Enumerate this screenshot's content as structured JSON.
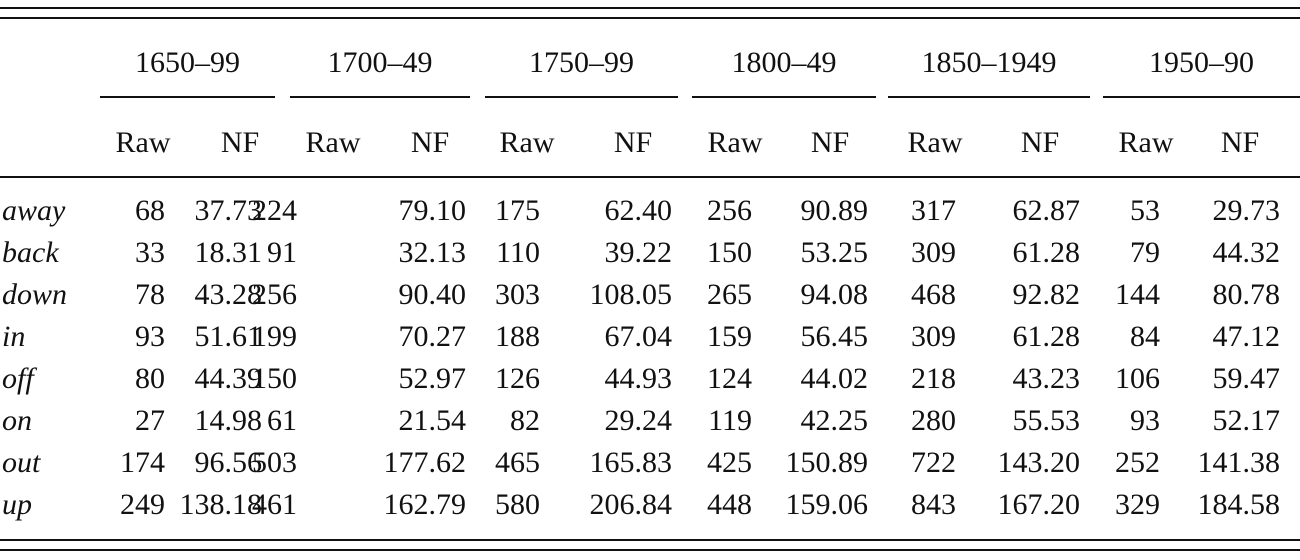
{
  "table": {
    "periods": [
      "1650–99",
      "1700–49",
      "1750–99",
      "1800–49",
      "1850–1949",
      "1950–90"
    ],
    "subheaders": [
      "Raw",
      "NF"
    ],
    "rows": [
      {
        "label": "away",
        "cells": [
          68,
          "37.73",
          224,
          "79.10",
          175,
          "62.40",
          256,
          "90.89",
          317,
          "62.87",
          53,
          "29.73"
        ]
      },
      {
        "label": "back",
        "cells": [
          33,
          "18.31",
          91,
          "32.13",
          110,
          "39.22",
          150,
          "53.25",
          309,
          "61.28",
          79,
          "44.32"
        ]
      },
      {
        "label": "down",
        "cells": [
          78,
          "43.28",
          256,
          "90.40",
          303,
          "108.05",
          265,
          "94.08",
          468,
          "92.82",
          144,
          "80.78"
        ]
      },
      {
        "label": "in",
        "cells": [
          93,
          "51.61",
          199,
          "70.27",
          188,
          "67.04",
          159,
          "56.45",
          309,
          "61.28",
          84,
          "47.12"
        ]
      },
      {
        "label": "off",
        "cells": [
          80,
          "44.39",
          150,
          "52.97",
          126,
          "44.93",
          124,
          "44.02",
          218,
          "43.23",
          106,
          "59.47"
        ]
      },
      {
        "label": "on",
        "cells": [
          27,
          "14.98",
          61,
          "21.54",
          82,
          "29.24",
          119,
          "42.25",
          280,
          "55.53",
          93,
          "52.17"
        ]
      },
      {
        "label": "out",
        "cells": [
          174,
          "96.56",
          503,
          "177.62",
          465,
          "165.83",
          425,
          "150.89",
          722,
          "143.20",
          252,
          "141.38"
        ]
      },
      {
        "label": "up",
        "cells": [
          249,
          "138.18",
          461,
          "162.79",
          580,
          "206.84",
          448,
          "159.06",
          843,
          "167.20",
          329,
          "184.58"
        ]
      }
    ]
  }
}
